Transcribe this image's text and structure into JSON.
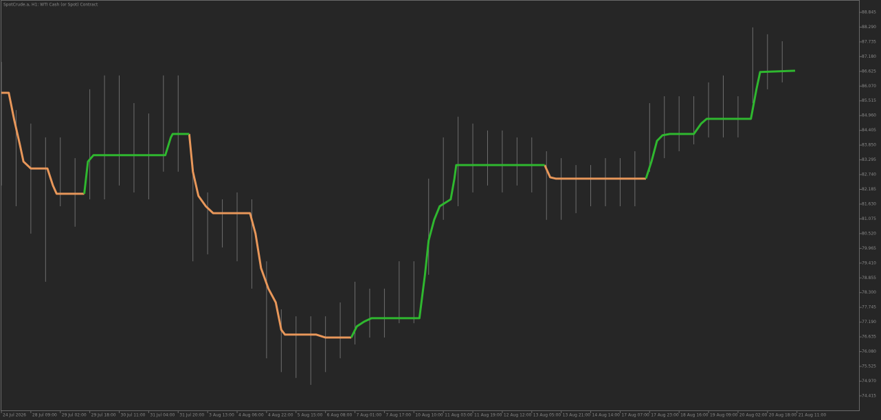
{
  "chart_data": {
    "type": "line",
    "title": "SpotCrude.a, H1:  WTI Cash (or Spot) Contract",
    "xlim": [
      0,
      465.7
    ],
    "ylim": [
      73.87,
      89.31
    ],
    "yticks": [
      88.845,
      {
        "value": 88.29,
        "label": "88.290"
      },
      87.735,
      {
        "value": 87.18,
        "label": "87.180"
      },
      86.625,
      {
        "value": 86.07,
        "label": "86.070"
      },
      85.515,
      {
        "value": 84.96,
        "label": "84.960"
      },
      84.405,
      {
        "value": 83.85,
        "label": "83.850"
      },
      83.295,
      {
        "value": 82.74,
        "label": "82.740"
      },
      82.185,
      {
        "value": 81.63,
        "label": "81.630"
      },
      81.075,
      {
        "value": 80.52,
        "label": "80.520"
      },
      79.965,
      {
        "value": 79.41,
        "label": "79.410"
      },
      78.855,
      {
        "value": 78.3,
        "label": "78.300"
      },
      77.745,
      {
        "value": 77.19,
        "label": "77.190"
      },
      76.635,
      {
        "value": 76.08,
        "label": "76.080"
      },
      75.525,
      {
        "value": 74.97,
        "label": "74.970"
      },
      74.415
    ],
    "xticks": [
      {
        "value": 0,
        "label": "24 Jul 2026"
      },
      {
        "value": 16,
        "label": "28 Jul 09:00"
      },
      {
        "value": 32,
        "label": "29 Jul 02:00"
      },
      {
        "value": 48,
        "label": "29 Jul 18:00"
      },
      {
        "value": 64,
        "label": "30 Jul 11:00"
      },
      {
        "value": 80,
        "label": "31 Jul 04:00"
      },
      {
        "value": 96,
        "label": "31 Jul 20:00"
      },
      {
        "value": 112,
        "label": "3 Aug 13:00"
      },
      {
        "value": 128,
        "label": "4 Aug 06:00"
      },
      {
        "value": 144,
        "label": "4 Aug 22:00"
      },
      {
        "value": 160,
        "label": "5 Aug 15:00"
      },
      {
        "value": 176,
        "label": "6 Aug 08:00"
      },
      {
        "value": 192,
        "label": "7 Aug 01:00"
      },
      {
        "value": 208,
        "label": "7 Aug 17:00"
      },
      {
        "value": 224,
        "label": "10 Aug 10:00"
      },
      {
        "value": 240,
        "label": "11 Aug 03:00"
      },
      {
        "value": 256,
        "label": "11 Aug 19:00"
      },
      {
        "value": 272,
        "label": "12 Aug 12:00"
      },
      {
        "value": 288,
        "label": "13 Aug 05:00"
      },
      {
        "value": 304,
        "label": "13 Aug 21:00"
      },
      {
        "value": 320,
        "label": "14 Aug 14:00"
      },
      {
        "value": 336,
        "label": "17 Aug 07:00"
      },
      {
        "value": 352,
        "label": "17 Aug 23:00"
      },
      {
        "value": 368,
        "label": "18 Aug 16:00"
      },
      {
        "value": 384,
        "label": "19 Aug 09:00"
      },
      {
        "value": 400,
        "label": "20 Aug 02:00"
      },
      {
        "value": 416,
        "label": "20 Aug 18:00"
      },
      {
        "value": 432,
        "label": "21 Aug 11:00"
      }
    ],
    "x": [
      0,
      4,
      7,
      10,
      12,
      16,
      25,
      28,
      30,
      45,
      47,
      50,
      89,
      92,
      93,
      102,
      104,
      107,
      111,
      115,
      135,
      138,
      141,
      145,
      149,
      152,
      154,
      171,
      176,
      190,
      193,
      197,
      201,
      227,
      230,
      232,
      235,
      238,
      244,
      246,
      247,
      295,
      298,
      301,
      350,
      353,
      356,
      359,
      363,
      376,
      380,
      383,
      407,
      410,
      412,
      431
    ],
    "series": [
      {
        "color": "#e8975a",
        "values": [
          85.82,
          85.82,
          84.79,
          83.88,
          83.23,
          82.97,
          82.97,
          82.33,
          82.02,
          82.02,
          null,
          null,
          null,
          null,
          null,
          84.27,
          82.85,
          81.94,
          81.55,
          81.29,
          81.29,
          80.52,
          79.22,
          78.45,
          77.93,
          76.9,
          76.72,
          76.72,
          76.61,
          76.61,
          null,
          null,
          null,
          null,
          null,
          null,
          null,
          null,
          null,
          null,
          null,
          83.1,
          82.64,
          82.59,
          82.59,
          null,
          null,
          null,
          null,
          null,
          null,
          null,
          null,
          null,
          null,
          null
        ]
      },
      {
        "color": "#2fb82f",
        "values": [
          null,
          null,
          null,
          null,
          null,
          null,
          null,
          null,
          null,
          82.02,
          83.23,
          83.47,
          83.47,
          84.14,
          84.27,
          84.27,
          null,
          null,
          null,
          null,
          null,
          null,
          null,
          null,
          null,
          null,
          null,
          null,
          null,
          76.61,
          77.03,
          77.21,
          77.34,
          77.34,
          78.97,
          80.26,
          81.04,
          81.55,
          81.81,
          82.59,
          83.1,
          83.1,
          null,
          null,
          82.59,
          83.23,
          84.01,
          84.22,
          84.27,
          84.27,
          84.66,
          84.84,
          84.84,
          85.95,
          86.6,
          86.65
        ]
      }
    ],
    "ranges": {
      "color": "#6e6e6e",
      "x": [
        0,
        8,
        16,
        24,
        32,
        40,
        48,
        56,
        64,
        72,
        80,
        88,
        96,
        104,
        112,
        120,
        128,
        136,
        144,
        152,
        160,
        168,
        176,
        184,
        192,
        200,
        208,
        216,
        224,
        232,
        240,
        248,
        256,
        264,
        272,
        280,
        288,
        296,
        304,
        312,
        320,
        328,
        336,
        344,
        352,
        360,
        368,
        376,
        384,
        392,
        400,
        408,
        416,
        424
      ],
      "high": [
        86.98,
        85.17,
        84.66,
        84.14,
        84.14,
        83.36,
        85.95,
        86.47,
        86.47,
        85.43,
        85.04,
        86.47,
        86.47,
        83.1,
        82.07,
        81.81,
        82.07,
        81.81,
        79.48,
        77.67,
        77.41,
        77.41,
        77.41,
        77.93,
        78.71,
        78.45,
        78.45,
        79.48,
        79.48,
        82.59,
        84.14,
        84.92,
        84.66,
        84.4,
        84.4,
        84.14,
        84.14,
        83.62,
        83.36,
        83.1,
        83.1,
        83.36,
        83.36,
        83.62,
        85.43,
        85.69,
        85.69,
        85.69,
        86.21,
        86.47,
        85.69,
        88.28,
        88.02,
        87.76
      ],
      "low": [
        82.33,
        81.55,
        80.52,
        78.71,
        81.55,
        80.78,
        81.81,
        81.81,
        82.33,
        82.07,
        81.81,
        82.85,
        82.85,
        79.48,
        79.74,
        80.0,
        79.48,
        78.45,
        75.83,
        75.31,
        75.09,
        74.83,
        75.31,
        75.83,
        76.35,
        76.61,
        76.61,
        77.15,
        77.15,
        78.97,
        81.04,
        81.55,
        82.07,
        82.33,
        82.07,
        82.33,
        82.07,
        81.04,
        81.04,
        81.29,
        81.55,
        81.55,
        81.55,
        81.55,
        82.85,
        83.36,
        83.62,
        83.88,
        84.14,
        84.14,
        84.14,
        85.43,
        85.95,
        86.21
      ]
    }
  }
}
